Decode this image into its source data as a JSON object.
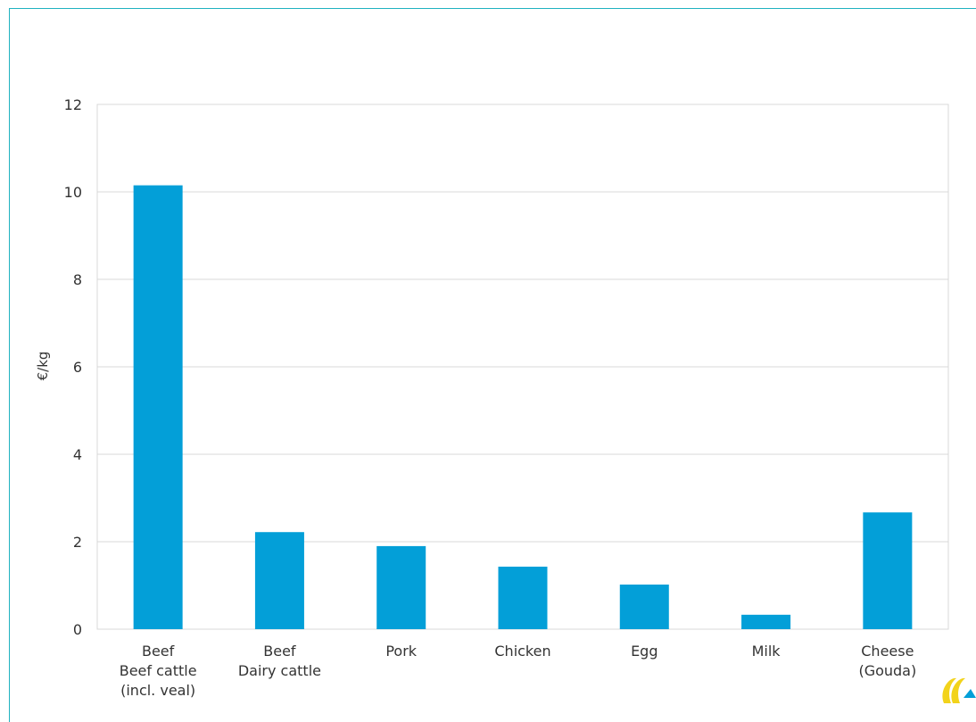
{
  "chart_data": {
    "type": "bar",
    "categories": [
      [
        "Beef",
        "Beef cattle",
        "(incl. veal)"
      ],
      [
        "Beef",
        "Dairy cattle"
      ],
      [
        "Pork"
      ],
      [
        "Chicken"
      ],
      [
        "Egg"
      ],
      [
        "Milk"
      ],
      [
        "Cheese",
        "(Gouda)"
      ]
    ],
    "values": [
      10.15,
      2.22,
      1.9,
      1.43,
      1.02,
      0.33,
      2.67
    ],
    "title": "",
    "xlabel": "",
    "ylabel": "€/kg",
    "ylim": [
      0,
      12
    ],
    "yticks": [
      0,
      2,
      4,
      6,
      8,
      10,
      12
    ],
    "grid": true,
    "bar_color": "#039fd8"
  },
  "logo": {
    "name": "logo-icon",
    "colors": [
      "#f2d31b",
      "#039fd8"
    ]
  }
}
